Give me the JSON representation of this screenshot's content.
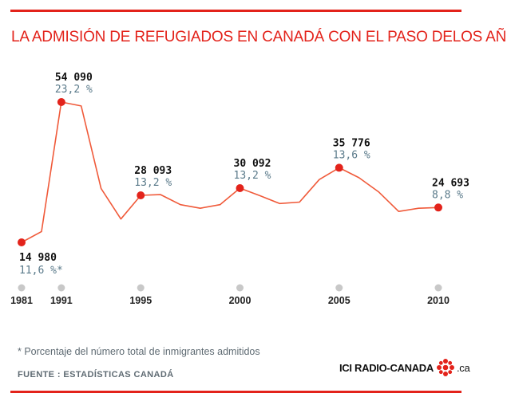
{
  "title": "LA ADMISIÓN DE REFUGIADOS EN CANADÁ CON EL PASO DELOS AÑOS",
  "footnote": "* Porcentaje del número total de inmigrantes admitidos",
  "source": "FUENTE : ESTADÍSTICAS CANADÁ",
  "logo": {
    "left": "ICI RADIO-CANADA",
    "right": ".ca",
    "icon": "cbc-gem-icon"
  },
  "colors": {
    "accent": "#e3231b",
    "line": "#f05a3a",
    "point": "#e3231b",
    "percent": "#5a7a8a",
    "tick_dot": "#c8c8c8"
  },
  "chart_data": {
    "type": "line",
    "title": "LA ADMISIÓN DE REFUGIADOS EN CANADÁ CON EL PASO DELOS AÑOS",
    "xlabel": "",
    "ylabel": "",
    "x": [
      1981,
      1990,
      1991,
      1992,
      1993,
      1994,
      1995,
      1996,
      1997,
      1998,
      1999,
      2000,
      2001,
      2002,
      2003,
      2004,
      2005,
      2006,
      2007,
      2008,
      2009,
      2010
    ],
    "y": [
      14980,
      18000,
      54090,
      53000,
      30000,
      21500,
      28093,
      28300,
      25500,
      24500,
      25500,
      30092,
      28000,
      25800,
      26200,
      32500,
      35776,
      33000,
      29000,
      23600,
      24500,
      24693
    ],
    "ylim": [
      10000,
      60000
    ],
    "x_ticks": [
      1981,
      1991,
      1995,
      2000,
      2005,
      2010
    ],
    "highlighted": [
      {
        "year": 1981,
        "value_label": "14 980",
        "percent_label": "11,6 %*",
        "label_pos": "below"
      },
      {
        "year": 1991,
        "value_label": "54 090",
        "percent_label": "23,2 %",
        "label_pos": "above"
      },
      {
        "year": 1995,
        "value_label": "28 093",
        "percent_label": "13,2 %",
        "label_pos": "above"
      },
      {
        "year": 2000,
        "value_label": "30 092",
        "percent_label": "13,2 %",
        "label_pos": "above"
      },
      {
        "year": 2005,
        "value_label": "35 776",
        "percent_label": "13,6 %",
        "label_pos": "above"
      },
      {
        "year": 2010,
        "value_label": "24 693",
        "percent_label": "8,8 %",
        "label_pos": "above"
      }
    ]
  }
}
